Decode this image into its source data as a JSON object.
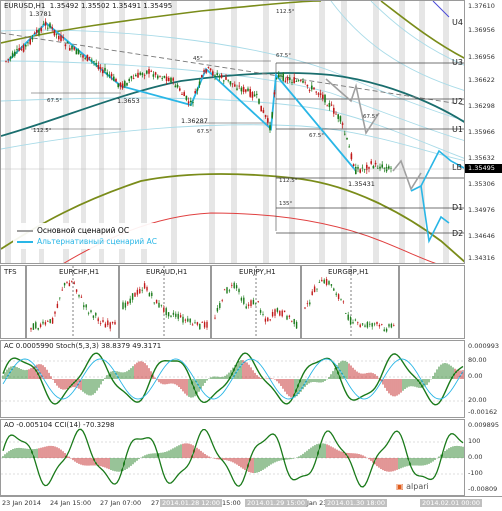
{
  "main": {
    "header": {
      "symbol": "EURUSD,H1",
      "ohlc": "1.35492 1.35502 1.35491 1.35495"
    },
    "top_price": "1.3781",
    "price_scale": [
      "1.37610",
      "1.36956",
      "1.36956",
      "1.36622",
      "1.36298",
      "1.35966",
      "1.35632",
      "1.35306",
      "1.34976",
      "1.34646",
      "1.34316"
    ],
    "current_price": "1.35495",
    "level_labels": [
      "U4",
      "U3",
      "U2",
      "U1",
      "LB",
      "D1",
      "D2"
    ],
    "percent_labels": [
      "112.5°",
      "45°",
      "67.5°",
      "67.5°",
      "67.5°",
      "112.5°",
      "67.5°",
      "67.5°",
      "112.5°",
      "135°"
    ],
    "price_notes": [
      "1.3653",
      "1.36287",
      "1.35431"
    ],
    "legend": {
      "main_scenario": "Основной сценарий ОС",
      "alt_scenario": "Альтернативный сценарий АС"
    }
  },
  "tfs": {
    "label": "TFS",
    "pairs": [
      "EURCHF,H1",
      "EURAUD,H1",
      "EURJPY,H1",
      "EURGBP,H1"
    ]
  },
  "ac": {
    "header": "AC 0.0005990  Stoch(5,3,3) 38.8379 49.3171",
    "scale": [
      "0.000993",
      "80.00",
      "0.00",
      "20.00",
      "-0.00162"
    ]
  },
  "ao": {
    "header": "AO -0.005104  CCI(14) -70.3298",
    "scale": [
      "0.009895",
      "100",
      "0.00",
      "-100",
      "-0.00809"
    ],
    "logo": "alpari"
  },
  "timebar": {
    "labels": [
      "23 Jan 2014",
      "24 Jan 15:00",
      "27 Jan 07:00",
      "27",
      "2014.01.28 12:00",
      "15:00",
      "2014.01.29 15:00",
      "Jan 23",
      "2014.01.30 18:00",
      "2014.02.01 00:00"
    ]
  },
  "colors": {
    "main_scenario": "#3a3a3a",
    "alt_scenario": "#29b6e6",
    "candle_up": "#1a7a1a",
    "candle_down": "#c01818",
    "olive": "#7a8c1a",
    "teal": "#1a6e6e",
    "red_ma": "#e04040"
  }
}
